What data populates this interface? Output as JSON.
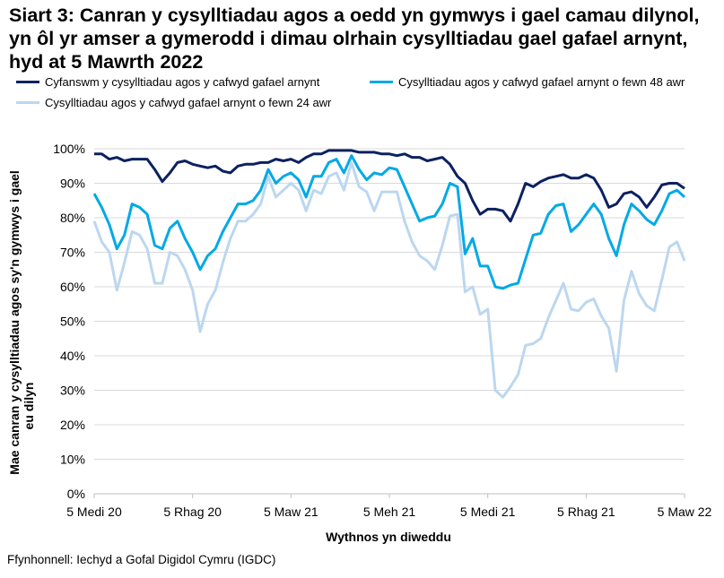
{
  "chart_data": {
    "type": "line",
    "title": "Siart 3: Canran y cysylltiadau agos a oedd yn gymwys i gael camau dilynol, yn ôl yr amser a gymerodd i dimau olrhain cysylltiadau gael gafael arnynt, hyd at 5 Mawrth 2022",
    "xlabel": "Wythnos yn diweddu",
    "ylabel": "Mae canran y cysylltiadau agos sy'n gymwys i gael eu dilyn",
    "x_start": "5 Medi 2020",
    "x_end": "5 Mawrth 2022",
    "x_interval": "weekly",
    "x_tick_labels": [
      "5 Medi 20",
      "5 Rhag 20",
      "5 Maw 21",
      "5 Meh 21",
      "5 Medi 21",
      "5 Rhag 21",
      "5 Maw 22"
    ],
    "y_tick_labels": [
      "0%",
      "10%",
      "20%",
      "30%",
      "40%",
      "50%",
      "60%",
      "70%",
      "80%",
      "90%",
      "100%"
    ],
    "ylim": [
      0,
      100
    ],
    "grid": "horizontal",
    "legend_placement": "top",
    "series": [
      {
        "name": "Cyfanswm y cysylltiadau agos y cafwyd gafael arnynt",
        "color": "#0b2160",
        "values": [
          98.5,
          98.5,
          97,
          97.5,
          96.5,
          97,
          97,
          97,
          94,
          90.5,
          93,
          96,
          96.5,
          95.5,
          95,
          94.5,
          95,
          93.5,
          93,
          95,
          95.5,
          95.5,
          96,
          96,
          97,
          96.5,
          97,
          96,
          97.5,
          98.5,
          98.5,
          99.5,
          99.5,
          99.5,
          99.5,
          99,
          99,
          99,
          98.5,
          98.5,
          98,
          98.5,
          97.5,
          97.5,
          96.5,
          97,
          97.5,
          95.5,
          92,
          90,
          85,
          81,
          82.5,
          82.5,
          82,
          79,
          84,
          90,
          89,
          90.5,
          91.5,
          92,
          92.5,
          91.5,
          91.5,
          92.5,
          91.5,
          88,
          83,
          84,
          87,
          87.5,
          86,
          83,
          86,
          89.5,
          90,
          90,
          88.5
        ]
      },
      {
        "name": "Cysylltiadau agos y cafwyd gafael arnynt o fewn 48 awr",
        "color": "#00a9e6",
        "values": [
          87,
          83,
          78,
          71,
          75,
          84,
          83,
          81,
          72,
          71,
          77,
          79,
          74,
          70,
          65,
          69,
          71,
          76,
          80,
          84,
          84,
          85,
          88,
          94,
          90,
          92,
          93,
          91,
          86,
          92,
          92,
          96,
          97,
          93,
          98,
          94,
          91,
          93,
          92.5,
          94.5,
          94,
          89,
          84,
          79,
          80,
          80.5,
          84,
          90,
          89,
          69.5,
          74,
          66,
          66,
          60,
          59.5,
          60.5,
          61,
          68,
          75,
          75.5,
          81,
          83.5,
          84,
          76,
          78,
          81,
          84,
          81,
          74,
          69,
          78,
          84,
          82,
          79.5,
          78,
          82,
          87,
          88,
          86
        ]
      },
      {
        "name": "Cysylltiadau agos y cafwyd gafael arnynt o fewn 24 awr",
        "color": "#bcd7ef",
        "values": [
          79,
          73,
          70,
          59,
          67,
          76,
          75,
          71,
          61,
          61,
          70,
          69,
          65,
          59,
          47,
          55,
          59,
          67,
          74,
          79,
          79,
          81,
          84,
          92,
          86,
          88,
          90,
          88,
          82,
          88,
          87,
          92,
          93,
          88,
          96,
          89,
          87.5,
          82,
          87.5,
          87.5,
          87.5,
          79,
          73,
          69,
          67.5,
          65,
          72,
          80.5,
          81,
          58.5,
          60,
          52,
          53.5,
          30,
          28,
          31,
          34.5,
          43,
          43.5,
          45,
          51,
          56,
          61,
          53.5,
          53,
          55.5,
          56.5,
          51.5,
          48,
          35.5,
          56,
          64.5,
          58,
          54.5,
          53,
          62,
          71.5,
          73,
          67.5
        ]
      }
    ]
  },
  "source": "Ffynhonnell: Iechyd a Gofal Digidol Cymru (IGDC)"
}
